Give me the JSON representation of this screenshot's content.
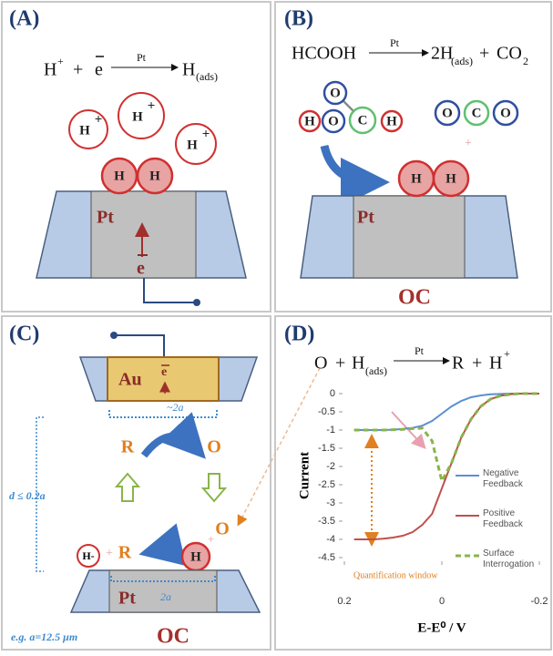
{
  "panel_a": {
    "label": "(A)",
    "equation": {
      "h": "H",
      "charge": "+",
      "plus": "+",
      "electron": "e",
      "catalyst": "Pt",
      "product": "H",
      "product_sub": "(ads)"
    },
    "ions": [
      {
        "symbol": "H",
        "charge": "+"
      },
      {
        "symbol": "H",
        "charge": "+"
      },
      {
        "symbol": "H",
        "charge": "+"
      }
    ],
    "adsorbed": [
      "H",
      "H"
    ],
    "electrode": "Pt",
    "electron": "e"
  },
  "panel_b": {
    "label": "(B)",
    "equation": {
      "reactant": "HCOOH",
      "catalyst": "Pt",
      "product1": "2H",
      "product1_sub": "(ads)",
      "plus": "+",
      "product2": "CO",
      "product2_sub": "2"
    },
    "formic_acid": [
      "O",
      "H",
      "O",
      "C",
      "H"
    ],
    "co2": [
      "O",
      "C",
      "O"
    ],
    "plus": "+",
    "adsorbed": [
      "H",
      "H"
    ],
    "electrode": "Pt",
    "mode": "OC"
  },
  "panel_c": {
    "label": "(C)",
    "tip": "Au",
    "tip_electron": "e",
    "tip_size": "~2a",
    "top_r": "R",
    "top_o": "O",
    "gap": "d ≤ 0.2a",
    "hydride": "H-",
    "plus": "+",
    "bottom_r": "R",
    "bottom_o": "O",
    "adsorbed": "H",
    "substrate": "Pt",
    "substrate_size": "2a",
    "example": "e.g. a=12.5 μm",
    "mode": "OC"
  },
  "panel_d": {
    "label": "(D)",
    "equation": {
      "o": "O",
      "plus": "+",
      "h": "H",
      "h_sub": "(ads)",
      "catalyst": "Pt",
      "r": "R",
      "h2": "H",
      "h2_charge": "+"
    },
    "chart": {
      "type": "line",
      "x_label": "E-E⁰ / V",
      "y_label": "Current",
      "annotation": "Quantification window",
      "legend": "right",
      "x": [
        0.18,
        0.16,
        0.14,
        0.12,
        0.1,
        0.08,
        0.06,
        0.04,
        0.02,
        0,
        -0.02,
        -0.04,
        -0.06,
        -0.08,
        -0.1,
        -0.12,
        -0.14,
        -0.16,
        -0.18,
        -0.2
      ],
      "series": [
        {
          "name": "Negative Feedback",
          "color": "#5b8fd0",
          "dash": false,
          "values": [
            -1,
            -1,
            -1,
            -1,
            -0.99,
            -0.97,
            -0.94,
            -0.88,
            -0.75,
            -0.55,
            -0.35,
            -0.2,
            -0.1,
            -0.05,
            -0.02,
            -0.01,
            0,
            0,
            0,
            0
          ]
        },
        {
          "name": "Positive Feedback",
          "color": "#c0504d",
          "dash": false,
          "values": [
            -4,
            -4,
            -4,
            -3.98,
            -3.95,
            -3.9,
            -3.8,
            -3.6,
            -3.3,
            -2.6,
            -1.9,
            -1.2,
            -0.7,
            -0.35,
            -0.15,
            -0.06,
            -0.02,
            0,
            0,
            0
          ]
        },
        {
          "name": "Surface Interrogation",
          "color": "#8ab44a",
          "dash": true,
          "values": [
            -1,
            -1,
            -1,
            -1,
            -0.99,
            -0.98,
            -0.96,
            -0.95,
            -1.3,
            -2.4,
            -1.9,
            -1.2,
            -0.7,
            -0.35,
            -0.15,
            -0.06,
            -0.02,
            0,
            0,
            0
          ]
        }
      ],
      "xlim": [
        0.2,
        -0.2
      ],
      "ylim": [
        -4.5,
        0
      ],
      "xticks": [
        0.2,
        0,
        -0.2
      ],
      "yticks": [
        0,
        -0.5,
        -1,
        -1.5,
        -2,
        -2.5,
        -3,
        -3.5,
        -4,
        -4.5
      ]
    }
  }
}
